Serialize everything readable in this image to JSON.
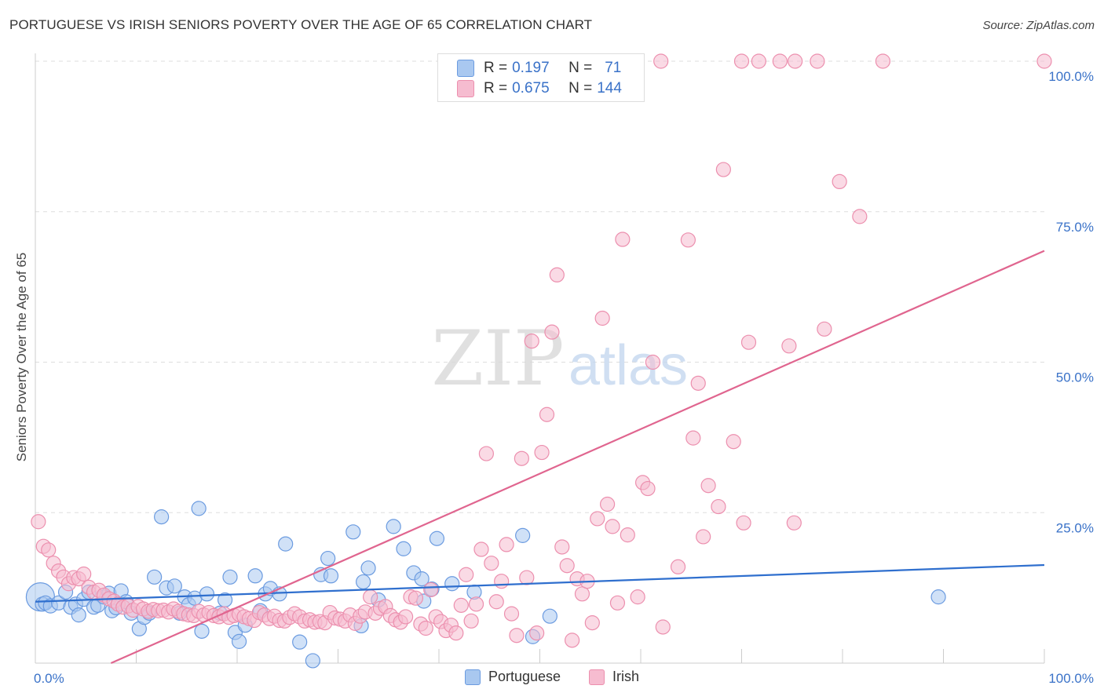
{
  "title": "PORTUGUESE VS IRISH SENIORS POVERTY OVER THE AGE OF 65 CORRELATION CHART",
  "source": "Source: ZipAtlas.com",
  "watermark": {
    "zip": "ZIP",
    "atlas": "atlas"
  },
  "stats": {
    "portuguese": {
      "r_label": "R = ",
      "r": "0.197",
      "n_label": "N = ",
      "n": "71"
    },
    "irish": {
      "r_label": "R = ",
      "r": "0.675",
      "n_label": "N = ",
      "n": "144"
    }
  },
  "legend": {
    "portuguese": "Portuguese",
    "irish": "Irish"
  },
  "colors": {
    "portuguese_fill": "#a9c8f0",
    "portuguese_stroke": "#6b9be0",
    "portuguese_line": "#2f6fce",
    "irish_fill": "#f6bcd0",
    "irish_stroke": "#ec8fae",
    "irish_line": "#e0658f",
    "axis_label": "#3a72c8",
    "grid": "#dddddd"
  },
  "chart_data": {
    "type": "scatter",
    "title": "PORTUGUESE VS IRISH SENIORS POVERTY OVER THE AGE OF 65 CORRELATION CHART",
    "xlabel": "",
    "ylabel": "Seniors Poverty Over the Age of 65",
    "xlim": [
      0,
      100
    ],
    "ylim": [
      0,
      100
    ],
    "x_tick_labels": [
      "0.0%",
      "100.0%"
    ],
    "y_ticks": [
      25,
      50,
      75,
      100
    ],
    "y_tick_labels": [
      "25.0%",
      "50.0%",
      "75.0%",
      "100.0%"
    ],
    "grid": true,
    "legend_position": "bottom",
    "series": [
      {
        "name": "Portuguese",
        "trend": {
          "x": [
            0,
            100
          ],
          "y": [
            10.2,
            16.3
          ]
        },
        "points": [
          [
            0.5,
            11
          ],
          [
            0.7,
            9.8
          ],
          [
            1,
            10
          ],
          [
            1.5,
            9.5
          ],
          [
            2.3,
            10
          ],
          [
            3,
            11.8
          ],
          [
            3.5,
            9.3
          ],
          [
            4,
            9.8
          ],
          [
            4.3,
            8
          ],
          [
            4.8,
            10.6
          ],
          [
            5.3,
            11.8
          ],
          [
            5.8,
            9.3
          ],
          [
            6.2,
            9.6
          ],
          [
            6.8,
            11
          ],
          [
            7.3,
            11.6
          ],
          [
            7.6,
            8.7
          ],
          [
            8,
            9.2
          ],
          [
            8.5,
            12
          ],
          [
            9,
            10.2
          ],
          [
            9.5,
            8.3
          ],
          [
            10.3,
            5.7
          ],
          [
            10.8,
            7.6
          ],
          [
            11.3,
            8.3
          ],
          [
            11.8,
            14.3
          ],
          [
            12.5,
            24.3
          ],
          [
            13,
            12.5
          ],
          [
            13.8,
            12.8
          ],
          [
            14.3,
            8.3
          ],
          [
            14.8,
            11
          ],
          [
            15.2,
            9.7
          ],
          [
            15.8,
            10.8
          ],
          [
            16.2,
            25.7
          ],
          [
            16.5,
            5.3
          ],
          [
            17,
            11.5
          ],
          [
            18.3,
            8.3
          ],
          [
            18.8,
            10.5
          ],
          [
            19.3,
            14.3
          ],
          [
            19.8,
            5.1
          ],
          [
            20.2,
            3.6
          ],
          [
            20.8,
            6.3
          ],
          [
            21.8,
            14.5
          ],
          [
            22.3,
            8.7
          ],
          [
            22.8,
            11.5
          ],
          [
            23.3,
            12.4
          ],
          [
            24.2,
            11.5
          ],
          [
            24.8,
            19.8
          ],
          [
            26.2,
            3.5
          ],
          [
            27.5,
            0.4
          ],
          [
            28.3,
            14.7
          ],
          [
            29,
            17.4
          ],
          [
            29.3,
            14.5
          ],
          [
            31.5,
            21.8
          ],
          [
            32.3,
            6.2
          ],
          [
            32.5,
            13.5
          ],
          [
            33,
            15.8
          ],
          [
            34,
            10.5
          ],
          [
            35.5,
            22.7
          ],
          [
            36.5,
            19
          ],
          [
            37.5,
            15
          ],
          [
            38.3,
            14
          ],
          [
            38.5,
            10.3
          ],
          [
            39.3,
            12.3
          ],
          [
            39.8,
            20.7
          ],
          [
            41.3,
            13.2
          ],
          [
            43.5,
            11.8
          ],
          [
            48.3,
            21.2
          ],
          [
            49.3,
            4.4
          ],
          [
            51,
            7.8
          ],
          [
            89.5,
            11
          ]
        ]
      },
      {
        "name": "Irish",
        "trend": {
          "x": [
            7.5,
            100
          ],
          "y": [
            0,
            68.5
          ]
        },
        "points": [
          [
            0.3,
            23.5
          ],
          [
            0.8,
            19.4
          ],
          [
            1.3,
            18.8
          ],
          [
            1.8,
            16.6
          ],
          [
            2.3,
            15.3
          ],
          [
            2.8,
            14.3
          ],
          [
            3.3,
            13.2
          ],
          [
            3.8,
            14.2
          ],
          [
            4.3,
            14
          ],
          [
            4.8,
            14.8
          ],
          [
            5.3,
            12.6
          ],
          [
            5.8,
            11.8
          ],
          [
            6.3,
            12.1
          ],
          [
            6.8,
            11.3
          ],
          [
            7.3,
            10.7
          ],
          [
            7.8,
            10.3
          ],
          [
            8.2,
            9.8
          ],
          [
            8.7,
            9.3
          ],
          [
            9.2,
            9.5
          ],
          [
            9.7,
            8.8
          ],
          [
            10.2,
            9.4
          ],
          [
            10.7,
            9
          ],
          [
            11.2,
            8.6
          ],
          [
            11.7,
            8.9
          ],
          [
            12.2,
            8.7
          ],
          [
            12.7,
            8.8
          ],
          [
            13.2,
            8.5
          ],
          [
            13.7,
            9
          ],
          [
            14.2,
            8.6
          ],
          [
            14.7,
            8.2
          ],
          [
            15.2,
            8
          ],
          [
            15.7,
            7.9
          ],
          [
            16.2,
            8.6
          ],
          [
            16.7,
            8
          ],
          [
            17.2,
            8.4
          ],
          [
            17.7,
            7.9
          ],
          [
            18.2,
            7.7
          ],
          [
            18.7,
            8.2
          ],
          [
            19.2,
            7.6
          ],
          [
            19.7,
            7.9
          ],
          [
            20.2,
            8.1
          ],
          [
            20.7,
            7.7
          ],
          [
            21.2,
            7.4
          ],
          [
            21.7,
            7.1
          ],
          [
            22.2,
            8.4
          ],
          [
            22.7,
            8
          ],
          [
            23.2,
            7.4
          ],
          [
            23.7,
            7.8
          ],
          [
            24.2,
            7.1
          ],
          [
            24.7,
            7
          ],
          [
            25.2,
            7.6
          ],
          [
            25.7,
            8.2
          ],
          [
            26.2,
            7.7
          ],
          [
            26.7,
            7
          ],
          [
            27.2,
            7.2
          ],
          [
            27.7,
            6.8
          ],
          [
            28.2,
            6.9
          ],
          [
            28.7,
            6.7
          ],
          [
            29.2,
            8.4
          ],
          [
            29.7,
            7.5
          ],
          [
            30.2,
            7.3
          ],
          [
            30.7,
            7
          ],
          [
            31.2,
            8
          ],
          [
            31.7,
            6.6
          ],
          [
            32.2,
            7.8
          ],
          [
            32.7,
            8.5
          ],
          [
            33.2,
            11
          ],
          [
            33.7,
            8.3
          ],
          [
            34.2,
            9.1
          ],
          [
            34.7,
            9.4
          ],
          [
            35.2,
            7.9
          ],
          [
            35.7,
            7.2
          ],
          [
            36.2,
            6.8
          ],
          [
            36.7,
            7.7
          ],
          [
            37.2,
            11
          ],
          [
            37.7,
            10.8
          ],
          [
            38.2,
            6.5
          ],
          [
            38.7,
            5.8
          ],
          [
            39.2,
            12.2
          ],
          [
            39.7,
            7.7
          ],
          [
            40.2,
            6.9
          ],
          [
            40.7,
            5.4
          ],
          [
            41.2,
            6.3
          ],
          [
            41.7,
            5
          ],
          [
            42.2,
            9.6
          ],
          [
            42.7,
            14.7
          ],
          [
            43.2,
            7
          ],
          [
            43.7,
            9.8
          ],
          [
            44.2,
            18.9
          ],
          [
            44.7,
            34.8
          ],
          [
            45.2,
            16.6
          ],
          [
            45.7,
            10.2
          ],
          [
            46.2,
            13.6
          ],
          [
            46.7,
            19.7
          ],
          [
            47.2,
            8.2
          ],
          [
            47.7,
            4.6
          ],
          [
            48.2,
            34
          ],
          [
            48.7,
            14.2
          ],
          [
            49.2,
            53.5
          ],
          [
            49.7,
            5
          ],
          [
            50.2,
            35
          ],
          [
            50.7,
            41.3
          ],
          [
            51.2,
            55
          ],
          [
            51.7,
            64.5
          ],
          [
            52.2,
            19.3
          ],
          [
            52.7,
            16.2
          ],
          [
            53.2,
            3.8
          ],
          [
            53.7,
            14
          ],
          [
            54.2,
            11.5
          ],
          [
            54.7,
            13.6
          ],
          [
            55.2,
            6.7
          ],
          [
            55.7,
            24
          ],
          [
            56.2,
            57.3
          ],
          [
            56.7,
            26.4
          ],
          [
            57.2,
            22.7
          ],
          [
            57.7,
            10
          ],
          [
            58.2,
            70.4
          ],
          [
            58.7,
            21.3
          ],
          [
            59.7,
            11
          ],
          [
            60.2,
            30
          ],
          [
            60.7,
            29
          ],
          [
            61.2,
            50
          ],
          [
            62.2,
            6
          ],
          [
            63.7,
            16
          ],
          [
            64.7,
            70.3
          ],
          [
            65.2,
            37.4
          ],
          [
            65.7,
            46.5
          ],
          [
            66.2,
            21
          ],
          [
            66.7,
            29.5
          ],
          [
            67.7,
            26
          ],
          [
            68.2,
            82
          ],
          [
            69.2,
            36.8
          ],
          [
            70.2,
            23.3
          ],
          [
            70.7,
            53.3
          ],
          [
            75.2,
            23.3
          ],
          [
            74.7,
            52.7
          ],
          [
            79.7,
            80
          ],
          [
            81.7,
            74.2
          ],
          [
            78.2,
            55.5
          ],
          [
            62,
            100
          ],
          [
            70,
            100
          ],
          [
            71.7,
            100
          ],
          [
            73.8,
            100
          ],
          [
            75.3,
            100
          ],
          [
            77.5,
            100
          ],
          [
            84,
            100
          ],
          [
            100,
            100
          ]
        ]
      }
    ]
  }
}
